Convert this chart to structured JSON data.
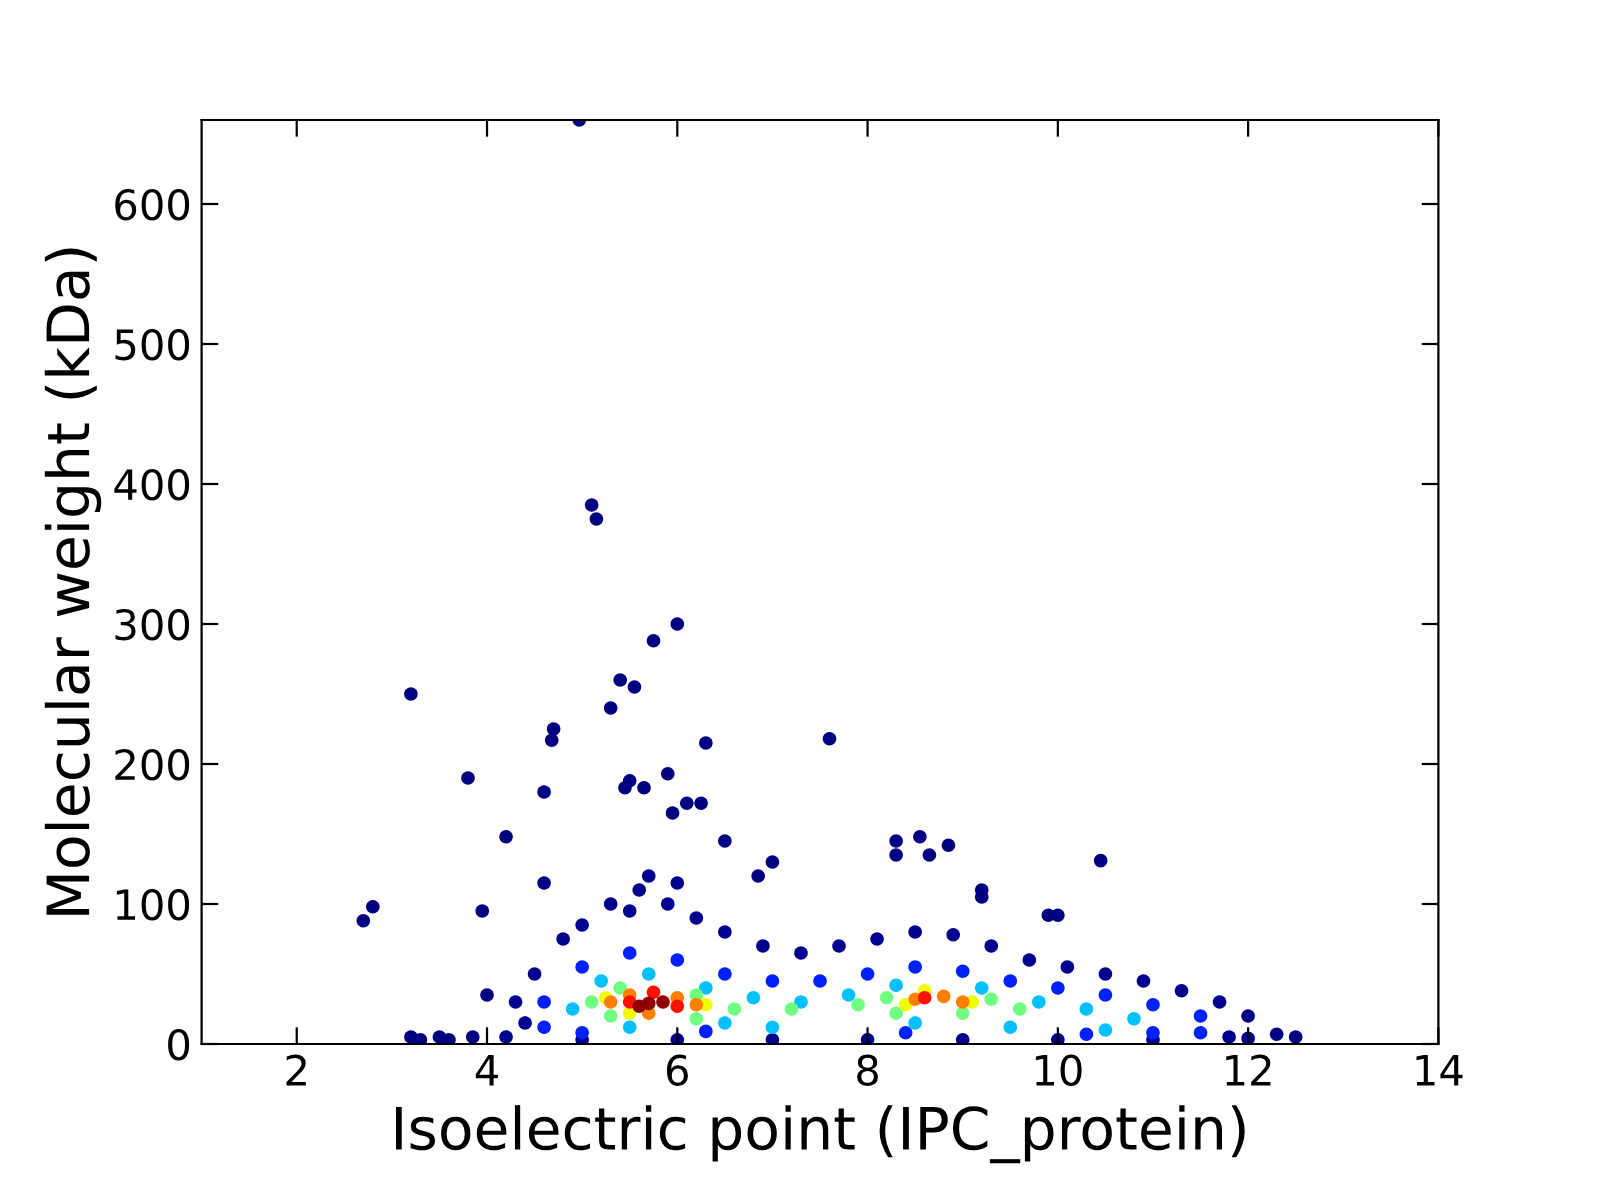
{
  "chart_data": {
    "type": "scatter",
    "xlabel": "Isoelectric point (IPC_protein)",
    "ylabel": "Molecular weight (kDa)",
    "xlim": [
      1,
      14
    ],
    "xticks": [
      2,
      4,
      6,
      8,
      10,
      12,
      14
    ],
    "ylim": [
      0,
      660
    ],
    "yticks": [
      0,
      100,
      200,
      300,
      400,
      500,
      600
    ],
    "grid": false,
    "marker": "circle",
    "series": [
      {
        "color": "#000080",
        "x": [
          4.97,
          5.1,
          5.15,
          6.0,
          5.75,
          5.4,
          5.55,
          5.3,
          3.2,
          4.7,
          4.68,
          6.3,
          7.6,
          3.8,
          4.6,
          5.5,
          5.45,
          5.9,
          5.65,
          4.2,
          6.1,
          6.25,
          5.95,
          2.7,
          2.8,
          3.95,
          4.6,
          8.55,
          8.3,
          8.3,
          8.85,
          8.65,
          10.45,
          9.9,
          10.0,
          9.2,
          9.2,
          7.0,
          6.85,
          6.5,
          3.2,
          3.3,
          3.5,
          3.6,
          12.5,
          12.3,
          12.0,
          4.0,
          3.85
        ],
        "values": [
          660,
          385,
          375,
          300,
          288,
          260,
          255,
          240,
          250,
          225,
          217,
          215,
          218,
          190,
          180,
          188,
          183,
          193,
          183,
          148,
          172,
          172,
          165,
          88,
          98,
          95,
          115,
          148,
          145,
          135,
          142,
          135,
          131,
          92,
          92,
          110,
          105,
          130,
          120,
          145,
          5,
          3,
          5,
          3,
          5,
          7,
          20,
          35,
          5
        ]
      },
      {
        "color": "#00008f",
        "x": [
          4.5,
          4.8,
          5.0,
          5.3,
          5.6,
          5.9,
          6.2,
          6.5,
          6.9,
          7.3,
          7.7,
          8.1,
          8.5,
          8.9,
          9.3,
          9.7,
          10.1,
          10.5,
          10.9,
          11.3,
          11.7,
          11.8,
          4.2,
          4.3,
          5.7,
          5.5,
          6.0,
          4.4,
          5,
          6,
          7,
          8,
          9,
          10,
          11,
          12.0
        ],
        "values": [
          50,
          75,
          85,
          100,
          110,
          100,
          90,
          80,
          70,
          65,
          70,
          75,
          80,
          78,
          70,
          60,
          55,
          50,
          45,
          38,
          30,
          5,
          5,
          30,
          120,
          95,
          115,
          15,
          3,
          3,
          3,
          3,
          3,
          3,
          3,
          4
        ]
      },
      {
        "color": "#0020ff",
        "x": [
          4.6,
          5.0,
          5.5,
          6.0,
          6.5,
          7.0,
          7.5,
          8.0,
          8.5,
          9.0,
          9.5,
          10.0,
          10.5,
          11.0,
          11.5,
          11.0,
          10.3,
          8.4,
          6.3,
          5.0,
          4.6,
          11.5
        ],
        "values": [
          30,
          55,
          65,
          60,
          50,
          45,
          45,
          50,
          55,
          52,
          45,
          40,
          35,
          28,
          20,
          8,
          7,
          8,
          9,
          8,
          12,
          8
        ]
      },
      {
        "color": "#00c0ff",
        "x": [
          4.9,
          5.2,
          5.7,
          6.3,
          6.8,
          7.3,
          7.8,
          8.3,
          9.2,
          9.8,
          10.3,
          10.8,
          7.0,
          8.5,
          5.5,
          6.5,
          9.5,
          10.5
        ],
        "values": [
          25,
          45,
          50,
          40,
          33,
          30,
          35,
          42,
          40,
          30,
          25,
          18,
          12,
          15,
          12,
          15,
          12,
          10
        ]
      },
      {
        "color": "#70ff80",
        "x": [
          5.1,
          5.4,
          6.2,
          6.6,
          7.2,
          7.9,
          8.2,
          9.3,
          9.6,
          5.3,
          6.2,
          8.3,
          9.0
        ],
        "values": [
          30,
          40,
          35,
          25,
          25,
          28,
          33,
          32,
          25,
          20,
          18,
          22,
          22
        ]
      },
      {
        "color": "#f0ff00",
        "x": [
          5.25,
          6.3,
          8.4,
          9.1,
          5.5,
          8.6
        ],
        "values": [
          33,
          28,
          28,
          30,
          22,
          38
        ]
      },
      {
        "color": "#ff8000",
        "x": [
          5.3,
          5.5,
          6.0,
          6.2,
          8.5,
          8.8,
          9.0,
          5.7
        ],
        "values": [
          30,
          35,
          33,
          28,
          32,
          34,
          30,
          22
        ]
      },
      {
        "color": "#ff1000",
        "x": [
          5.5,
          5.75,
          6.0,
          8.6
        ],
        "values": [
          30,
          37,
          27,
          33
        ]
      },
      {
        "color": "#900000",
        "x": [
          5.7,
          5.85,
          5.6
        ],
        "values": [
          29,
          30,
          27
        ]
      }
    ]
  }
}
